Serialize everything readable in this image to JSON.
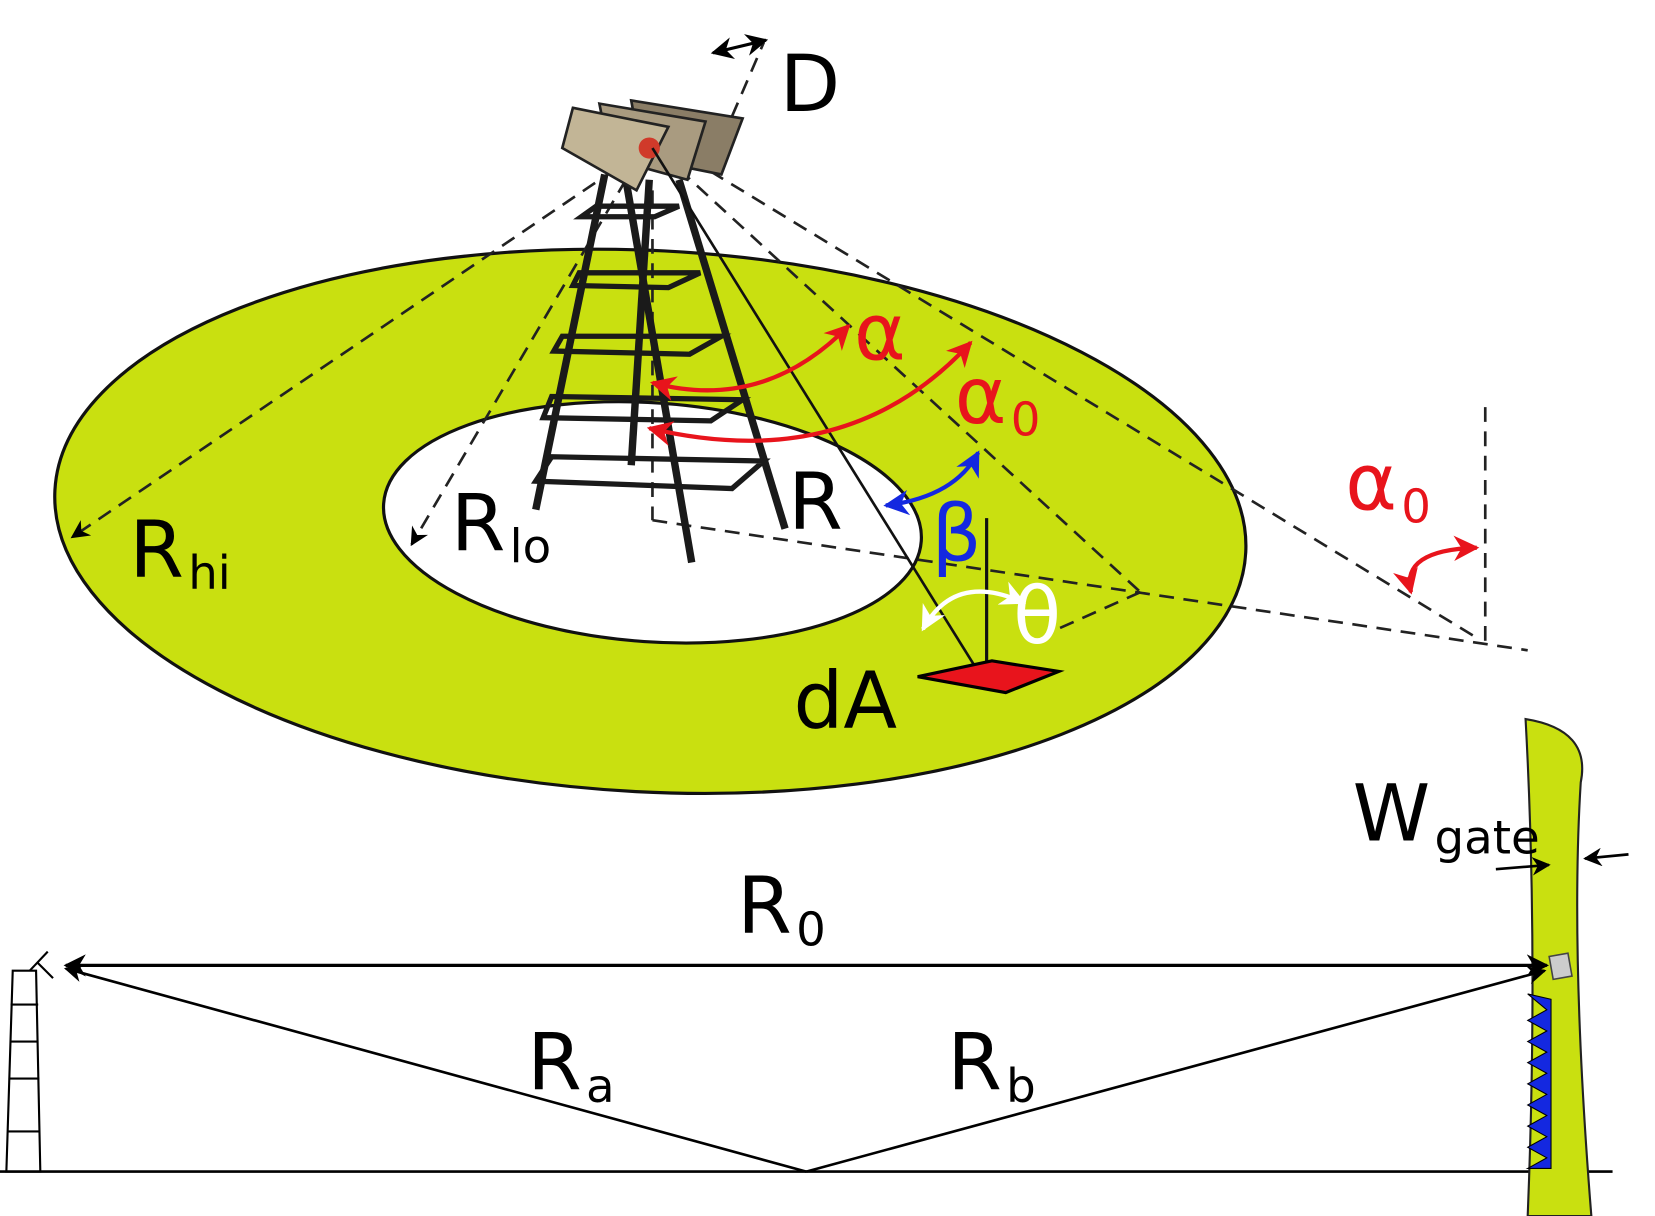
{
  "labels": [
    {
      "text": "D"
    },
    {
      "text": "α"
    },
    {
      "text": "α",
      "subscript": "0"
    },
    {
      "text": "α",
      "subscript": "0"
    },
    {
      "text": "R"
    },
    {
      "text": "R",
      "subscript": "hi"
    },
    {
      "text": "R",
      "subscript": "lo"
    },
    {
      "text": "β"
    },
    {
      "text": "θ"
    },
    {
      "text": "dA"
    },
    {
      "text": "W",
      "subscript": "gate"
    },
    {
      "text": "R",
      "subscript": "0"
    },
    {
      "text": "R",
      "subscript": "a"
    },
    {
      "text": "R",
      "subscript": "b"
    }
  ]
}
